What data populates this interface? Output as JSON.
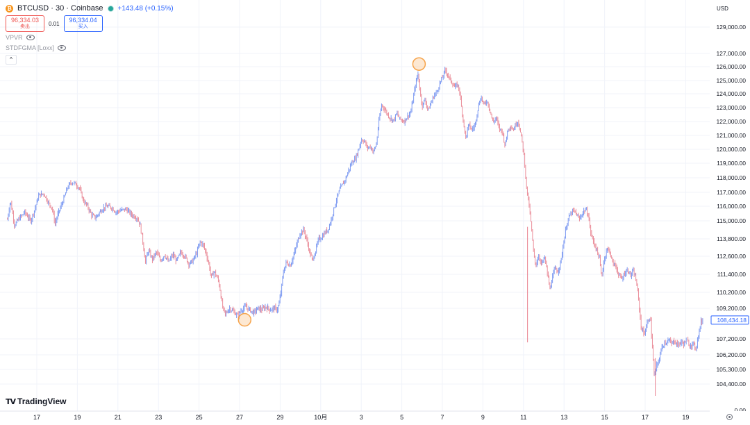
{
  "header": {
    "symbol_title": "BTCUSD · 30 · Coinbase",
    "coin_icon_glyph": "₿",
    "price_change": "+143.48 (+0.15%)"
  },
  "quote": {
    "sell_price": "96,334.03",
    "sell_label": "卖出",
    "spread": "0.01",
    "buy_price": "96,334.04",
    "buy_label": "买入"
  },
  "indicators": [
    {
      "name": "VPVR"
    },
    {
      "name": "STDFGMA [Loxx]"
    }
  ],
  "collapse_glyph": "^",
  "currency": "USD",
  "logo": {
    "mark": "TV",
    "text": "TradingView"
  },
  "icons": {
    "coin": "bitcoin-icon",
    "eye": "eye-icon",
    "collapse": "chevron-up-icon",
    "settings": "settings-icon"
  },
  "colors": {
    "candle_up": "#6e8ff0",
    "candle_down": "#e8808f",
    "highlight": "#f6a34a",
    "grid": "#f0f3fa",
    "axis_text": "#131722",
    "last_price": "#2962ff"
  },
  "chart_data": {
    "type": "line",
    "style": "candlestick",
    "price_axis": {
      "labels": [
        {
          "value": 129000,
          "text": "129,000.00"
        },
        {
          "value": 127000,
          "text": "127,000.00"
        },
        {
          "value": 126000,
          "text": "126,000.00"
        },
        {
          "value": 125000,
          "text": "125,000.00"
        },
        {
          "value": 124000,
          "text": "124,000.00"
        },
        {
          "value": 123000,
          "text": "123,000.00"
        },
        {
          "value": 122000,
          "text": "122,000.00"
        },
        {
          "value": 121000,
          "text": "121,000.00"
        },
        {
          "value": 120000,
          "text": "120,000.00"
        },
        {
          "value": 119000,
          "text": "119,000.00"
        },
        {
          "value": 118000,
          "text": "118,000.00"
        },
        {
          "value": 117000,
          "text": "117,000.00"
        },
        {
          "value": 116000,
          "text": "116,000.00"
        },
        {
          "value": 115000,
          "text": "115,000.00"
        },
        {
          "value": 113800,
          "text": "113,800.00"
        },
        {
          "value": 112600,
          "text": "112,600.00"
        },
        {
          "value": 111400,
          "text": "111,400.00"
        },
        {
          "value": 110200,
          "text": "110,200.00"
        },
        {
          "value": 109200,
          "text": "109,200.00"
        },
        {
          "value": 107200,
          "text": "107,200.00"
        },
        {
          "value": 106200,
          "text": "106,200.00"
        },
        {
          "value": 105300,
          "text": "105,300.00"
        },
        {
          "value": 104400,
          "text": "104,400.00"
        },
        {
          "value": 0,
          "text": "0.00"
        }
      ],
      "last_price": {
        "value": 108434.18,
        "text": "108,434.18"
      }
    },
    "time_axis": {
      "labels": [
        {
          "t": 0,
          "text": "17"
        },
        {
          "t": 2,
          "text": "19"
        },
        {
          "t": 4,
          "text": "21"
        },
        {
          "t": 6,
          "text": "23"
        },
        {
          "t": 8,
          "text": "25"
        },
        {
          "t": 10,
          "text": "27"
        },
        {
          "t": 12,
          "text": "29"
        },
        {
          "t": 14,
          "text": "10月"
        },
        {
          "t": 16,
          "text": "3"
        },
        {
          "t": 18,
          "text": "5"
        },
        {
          "t": 20,
          "text": "7"
        },
        {
          "t": 22,
          "text": "9"
        },
        {
          "t": 24,
          "text": "11"
        },
        {
          "t": 26,
          "text": "13"
        },
        {
          "t": 28,
          "text": "15"
        },
        {
          "t": 30,
          "text": "17"
        },
        {
          "t": 32,
          "text": "19"
        }
      ]
    },
    "series": [
      {
        "values": [
          [
            -1.45,
            115100
          ],
          [
            -1.3,
            116400
          ],
          [
            -1.1,
            114700
          ],
          [
            -0.9,
            115100
          ],
          [
            -0.6,
            115600
          ],
          [
            -0.3,
            115000
          ],
          [
            -0.1,
            115800
          ],
          [
            0.1,
            116800
          ],
          [
            0.35,
            116900
          ],
          [
            0.55,
            116300
          ],
          [
            0.75,
            115900
          ],
          [
            0.9,
            114800
          ],
          [
            1.05,
            115500
          ],
          [
            1.3,
            116400
          ],
          [
            1.5,
            117300
          ],
          [
            1.7,
            117700
          ],
          [
            1.9,
            117600
          ],
          [
            2.1,
            117300
          ],
          [
            2.3,
            116400
          ],
          [
            2.5,
            116000
          ],
          [
            2.7,
            115400
          ],
          [
            2.9,
            115200
          ],
          [
            3.1,
            115600
          ],
          [
            3.3,
            115900
          ],
          [
            3.5,
            116000
          ],
          [
            3.7,
            115900
          ],
          [
            3.9,
            115600
          ],
          [
            4.1,
            115700
          ],
          [
            4.4,
            115800
          ],
          [
            4.7,
            115400
          ],
          [
            4.95,
            115200
          ],
          [
            5.1,
            114700
          ],
          [
            5.25,
            113400
          ],
          [
            5.35,
            112200
          ],
          [
            5.5,
            113000
          ],
          [
            5.7,
            112400
          ],
          [
            5.9,
            112900
          ],
          [
            6.1,
            112300
          ],
          [
            6.3,
            112700
          ],
          [
            6.5,
            112200
          ],
          [
            6.7,
            112700
          ],
          [
            6.9,
            112300
          ],
          [
            7.1,
            112900
          ],
          [
            7.3,
            112600
          ],
          [
            7.5,
            112100
          ],
          [
            7.7,
            112300
          ],
          [
            7.9,
            112900
          ],
          [
            8.05,
            113600
          ],
          [
            8.2,
            113400
          ],
          [
            8.35,
            112800
          ],
          [
            8.5,
            112000
          ],
          [
            8.6,
            111200
          ],
          [
            8.75,
            111600
          ],
          [
            8.95,
            111000
          ],
          [
            9.05,
            110300
          ],
          [
            9.15,
            109300
          ],
          [
            9.3,
            108800
          ],
          [
            9.5,
            109200
          ],
          [
            9.7,
            109000
          ],
          [
            9.9,
            108700
          ],
          [
            10.1,
            109100
          ],
          [
            10.3,
            109300
          ],
          [
            10.5,
            109100
          ],
          [
            10.7,
            108900
          ],
          [
            10.9,
            109200
          ],
          [
            11.1,
            109100
          ],
          [
            11.3,
            109300
          ],
          [
            11.5,
            109100
          ],
          [
            11.7,
            109200
          ],
          [
            11.85,
            109100
          ],
          [
            11.95,
            109500
          ],
          [
            12.05,
            110300
          ],
          [
            12.15,
            111500
          ],
          [
            12.3,
            112200
          ],
          [
            12.5,
            112000
          ],
          [
            12.7,
            112800
          ],
          [
            12.85,
            113600
          ],
          [
            13.0,
            114200
          ],
          [
            13.15,
            114400
          ],
          [
            13.3,
            113800
          ],
          [
            13.45,
            112900
          ],
          [
            13.6,
            112300
          ],
          [
            13.75,
            113000
          ],
          [
            13.9,
            113800
          ],
          [
            14.05,
            113900
          ],
          [
            14.2,
            114200
          ],
          [
            14.35,
            114400
          ],
          [
            14.5,
            115000
          ],
          [
            14.65,
            115800
          ],
          [
            14.8,
            116600
          ],
          [
            14.95,
            117200
          ],
          [
            15.1,
            117600
          ],
          [
            15.25,
            118000
          ],
          [
            15.4,
            118600
          ],
          [
            15.55,
            119100
          ],
          [
            15.7,
            119300
          ],
          [
            15.85,
            119900
          ],
          [
            16.0,
            120700
          ],
          [
            16.15,
            120600
          ],
          [
            16.3,
            120100
          ],
          [
            16.45,
            120200
          ],
          [
            16.6,
            119800
          ],
          [
            16.75,
            120400
          ],
          [
            16.85,
            121800
          ],
          [
            17.0,
            123200
          ],
          [
            17.15,
            122900
          ],
          [
            17.3,
            122500
          ],
          [
            17.45,
            122200
          ],
          [
            17.6,
            122100
          ],
          [
            17.75,
            122600
          ],
          [
            17.9,
            122200
          ],
          [
            18.1,
            122000
          ],
          [
            18.3,
            122400
          ],
          [
            18.45,
            122700
          ],
          [
            18.55,
            123600
          ],
          [
            18.7,
            124900
          ],
          [
            18.8,
            125500
          ],
          [
            18.9,
            124200
          ],
          [
            19.0,
            123100
          ],
          [
            19.15,
            123600
          ],
          [
            19.3,
            122800
          ],
          [
            19.45,
            123400
          ],
          [
            19.6,
            123900
          ],
          [
            19.75,
            124200
          ],
          [
            19.9,
            124900
          ],
          [
            20.05,
            125400
          ],
          [
            20.15,
            125800
          ],
          [
            20.3,
            125300
          ],
          [
            20.45,
            124900
          ],
          [
            20.6,
            124500
          ],
          [
            20.75,
            124700
          ],
          [
            20.85,
            124200
          ],
          [
            20.95,
            122900
          ],
          [
            21.05,
            121900
          ],
          [
            21.15,
            120800
          ],
          [
            21.3,
            121800
          ],
          [
            21.45,
            121400
          ],
          [
            21.6,
            121700
          ],
          [
            21.75,
            122900
          ],
          [
            21.9,
            123800
          ],
          [
            22.05,
            123200
          ],
          [
            22.2,
            123500
          ],
          [
            22.35,
            122800
          ],
          [
            22.5,
            121900
          ],
          [
            22.65,
            122300
          ],
          [
            22.8,
            121500
          ],
          [
            22.95,
            121300
          ],
          [
            23.1,
            120200
          ],
          [
            23.2,
            121300
          ],
          [
            23.35,
            121700
          ],
          [
            23.5,
            121400
          ],
          [
            23.65,
            121900
          ],
          [
            23.75,
            122000
          ],
          [
            23.85,
            121200
          ],
          [
            23.95,
            120400
          ],
          [
            24.05,
            119200
          ],
          [
            24.15,
            117300
          ],
          [
            24.3,
            115800
          ],
          [
            24.4,
            114400
          ],
          [
            24.5,
            112800
          ],
          [
            24.6,
            112000
          ],
          [
            24.75,
            112600
          ],
          [
            24.9,
            112100
          ],
          [
            25.05,
            112500
          ],
          [
            25.2,
            111300
          ],
          [
            25.3,
            110400
          ],
          [
            25.4,
            111000
          ],
          [
            25.55,
            111800
          ],
          [
            25.7,
            111600
          ],
          [
            25.85,
            112300
          ],
          [
            26.0,
            113700
          ],
          [
            26.15,
            114900
          ],
          [
            26.3,
            115400
          ],
          [
            26.45,
            115700
          ],
          [
            26.6,
            115500
          ],
          [
            26.75,
            115100
          ],
          [
            26.9,
            115500
          ],
          [
            27.05,
            115800
          ],
          [
            27.2,
            115400
          ],
          [
            27.3,
            114300
          ],
          [
            27.45,
            113600
          ],
          [
            27.6,
            113100
          ],
          [
            27.75,
            112400
          ],
          [
            27.85,
            111200
          ],
          [
            27.95,
            112100
          ],
          [
            28.1,
            113100
          ],
          [
            28.25,
            113000
          ],
          [
            28.4,
            112100
          ],
          [
            28.55,
            112000
          ],
          [
            28.7,
            111300
          ],
          [
            28.85,
            111100
          ],
          [
            29.0,
            111500
          ],
          [
            29.15,
            111700
          ],
          [
            29.3,
            111300
          ],
          [
            29.4,
            111600
          ],
          [
            29.5,
            111300
          ],
          [
            29.6,
            110600
          ],
          [
            29.7,
            109400
          ],
          [
            29.8,
            108000
          ],
          [
            29.95,
            107500
          ],
          [
            30.1,
            108200
          ],
          [
            30.25,
            108700
          ],
          [
            30.35,
            106800
          ],
          [
            30.45,
            104800
          ],
          [
            30.55,
            105400
          ],
          [
            30.7,
            106000
          ],
          [
            30.85,
            106800
          ],
          [
            31.0,
            107000
          ],
          [
            31.15,
            107100
          ],
          [
            31.3,
            106900
          ],
          [
            31.45,
            107100
          ],
          [
            31.6,
            106800
          ],
          [
            31.75,
            107000
          ],
          [
            31.9,
            106900
          ],
          [
            32.05,
            107100
          ],
          [
            32.2,
            106800
          ],
          [
            32.35,
            106900
          ],
          [
            32.5,
            106600
          ],
          [
            32.65,
            107600
          ],
          [
            32.75,
            108300
          ],
          [
            32.85,
            108434
          ]
        ]
      }
    ],
    "highlights": [
      {
        "t": 18.85,
        "price": 126200
      },
      {
        "t": 10.25,
        "price": 108450
      }
    ]
  }
}
